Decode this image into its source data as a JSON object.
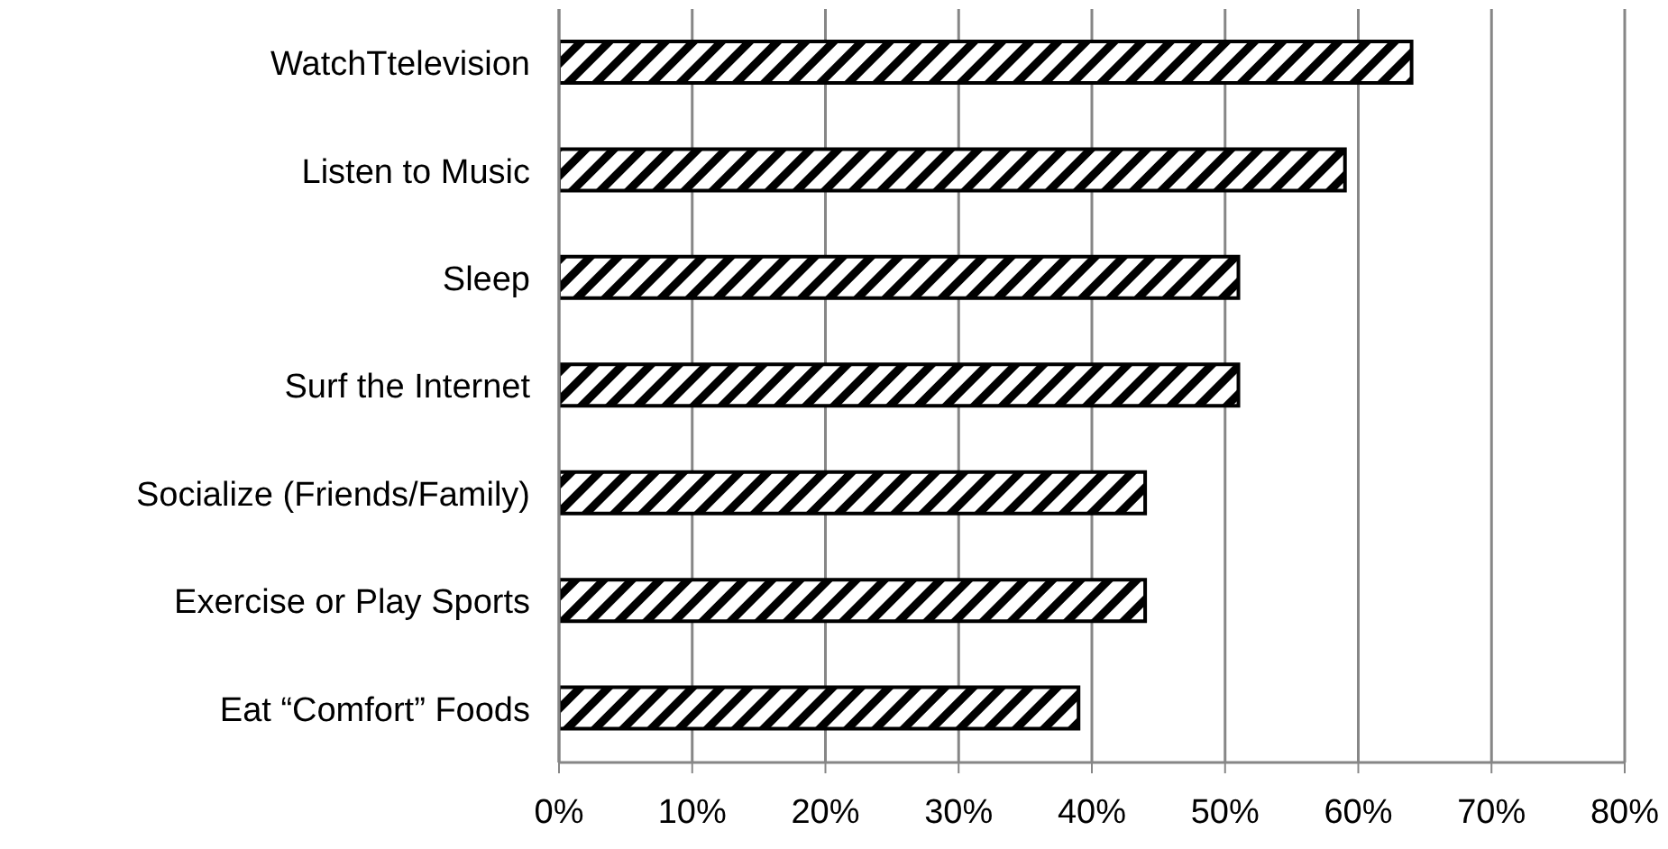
{
  "chart_data": {
    "type": "bar",
    "orientation": "horizontal",
    "categories": [
      "WatchTtelevision",
      "Listen to Music",
      "Sleep",
      "Surf the Internet",
      "Socialize (Friends/Family)",
      "Exercise or Play Sports",
      "Eat “Comfort” Foods"
    ],
    "values": [
      64,
      59,
      51,
      51,
      44,
      44,
      39
    ],
    "color": "#000000",
    "xlim": [
      0,
      80
    ],
    "xticks": [
      {
        "value": 0,
        "label": "0%"
      },
      {
        "value": 10,
        "label": "10%"
      },
      {
        "value": 20,
        "label": "20%"
      },
      {
        "value": 30,
        "label": "30%"
      },
      {
        "value": 40,
        "label": "40%"
      },
      {
        "value": 50,
        "label": "50%"
      },
      {
        "value": 60,
        "label": "60%"
      },
      {
        "value": 70,
        "label": "70%"
      },
      {
        "value": 80,
        "label": "80%"
      }
    ],
    "grid": "x",
    "legend": false
  }
}
